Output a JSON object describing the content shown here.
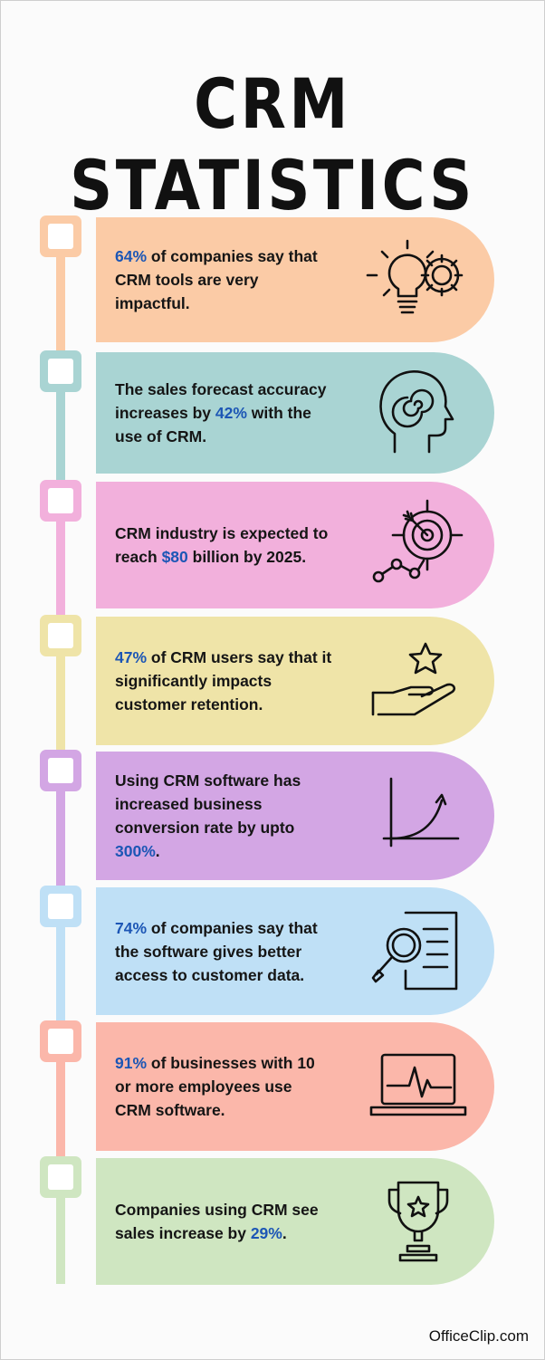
{
  "title": "CRM STATISTICS",
  "highlight_color": "#1c56b5",
  "stats": [
    {
      "color": "#fbcba6",
      "icon": "lightbulb-gear-icon",
      "parts": [
        {
          "t": "64%",
          "h": true
        },
        {
          "t": " of companies say that CRM tools are very impactful.",
          "h": false
        }
      ]
    },
    {
      "color": "#a9d4d3",
      "icon": "head-spiral-icon",
      "parts": [
        {
          "t": "The sales forecast accuracy increases by ",
          "h": false
        },
        {
          "t": "42%",
          "h": true
        },
        {
          "t": " with the use of CRM.",
          "h": false
        }
      ]
    },
    {
      "color": "#f2b0dc",
      "icon": "target-growth-icon",
      "parts": [
        {
          "t": "CRM industry is expected to reach ",
          "h": false
        },
        {
          "t": "$80",
          "h": true
        },
        {
          "t": " billion by 2025.",
          "h": false
        }
      ]
    },
    {
      "color": "#efe4a8",
      "icon": "hand-star-icon",
      "parts": [
        {
          "t": "47%",
          "h": true
        },
        {
          "t": " of CRM users say that it significantly impacts customer retention.",
          "h": false
        }
      ]
    },
    {
      "color": "#d3a6e4",
      "icon": "growth-chart-icon",
      "parts": [
        {
          "t": "Using CRM software has increased business conversion rate by upto ",
          "h": false
        },
        {
          "t": "300%",
          "h": true
        },
        {
          "t": ".",
          "h": false
        }
      ]
    },
    {
      "color": "#bfe0f6",
      "icon": "magnifier-document-icon",
      "parts": [
        {
          "t": "74%",
          "h": true
        },
        {
          "t": " of companies say that the software gives better access to customer data.",
          "h": false
        }
      ]
    },
    {
      "color": "#fbb7aa",
      "icon": "laptop-pulse-icon",
      "parts": [
        {
          "t": "91%",
          "h": true
        },
        {
          "t": " of businesses with 10 or more employees use CRM software.",
          "h": false
        }
      ]
    },
    {
      "color": "#cfe6c1",
      "icon": "trophy-star-icon",
      "parts": [
        {
          "t": "Companies using CRM see sales increase by ",
          "h": false
        },
        {
          "t": "29%",
          "h": true
        },
        {
          "t": ".",
          "h": false
        }
      ]
    }
  ],
  "footer": "OfficeClip.com"
}
